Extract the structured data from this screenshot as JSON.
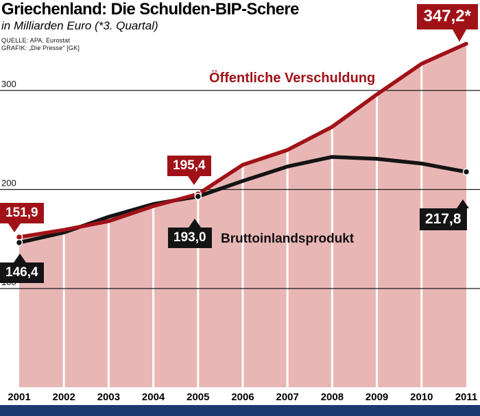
{
  "header": {
    "title": "Griechenland: Die Schulden-BIP-Schere",
    "subtitle": "in Milliarden Euro (*3. Quartal)",
    "source": "QUELLE: APA, Eurostat",
    "credit": "GRAFIK: „Die Presse“ [GK]"
  },
  "chart_data": {
    "type": "area",
    "title": "Griechenland: Die Schulden-BIP-Schere",
    "x": [
      2001,
      2002,
      2003,
      2004,
      2005,
      2006,
      2007,
      2008,
      2009,
      2010,
      2011
    ],
    "series": [
      {
        "name": "Öffentliche Verschuldung",
        "color": "#a01218",
        "values": [
          151.9,
          159.2,
          168.0,
          183.2,
          195.4,
          224.9,
          239.9,
          263.3,
          296.0,
          327.0,
          347.2
        ]
      },
      {
        "name": "Bruttoinlandsprodukt",
        "color": "#141414",
        "values": [
          146.4,
          156.6,
          172.4,
          185.3,
          193.0,
          208.6,
          223.2,
          232.9,
          231.0,
          226.2,
          217.8
        ]
      }
    ],
    "yticks": [
      100,
      200,
      300
    ],
    "ylim": [
      0,
      360
    ],
    "area_fill": "#e9b6b6",
    "grid": "horizontal lines at yticks, white vertical separators per year",
    "legend_position": "inline labels on lines",
    "annotations": [
      {
        "series": "Öffentliche Verschuldung",
        "x": 2001,
        "label": "151,9"
      },
      {
        "series": "Bruttoinlandsprodukt",
        "x": 2001,
        "label": "146,4"
      },
      {
        "series": "Öffentliche Verschuldung",
        "x": 2005,
        "label": "195,4"
      },
      {
        "series": "Bruttoinlandsprodukt",
        "x": 2005,
        "label": "193,0"
      },
      {
        "series": "Öffentliche Verschuldung",
        "x": 2011,
        "label": "347,2*"
      },
      {
        "series": "Bruttoinlandsprodukt",
        "x": 2011,
        "label": "217,8"
      }
    ]
  }
}
